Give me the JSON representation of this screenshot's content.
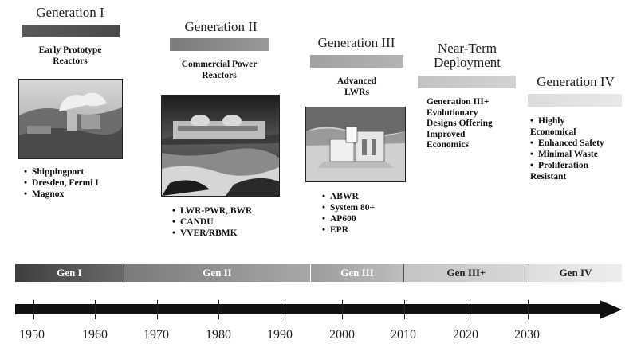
{
  "generations": [
    {
      "title": "Generation I",
      "subtitle_lines": [
        "Early Prototype",
        "Reactors"
      ],
      "items": [
        "Shippingport",
        "Dresden, Fermi I",
        "Magnox"
      ],
      "bar_from": "#5a5a5a",
      "bar_to": "#4a4a4a"
    },
    {
      "title": "Generation II",
      "subtitle_lines": [
        "Commercial Power",
        "Reactors"
      ],
      "items": [
        "LWR-PWR, BWR",
        "CANDU",
        "VVER/RBMK"
      ],
      "bar_from": "#7a7a7a",
      "bar_to": "#9a9a9a"
    },
    {
      "title": "Generation III",
      "subtitle_lines": [
        "Advanced",
        "LWRs"
      ],
      "items": [
        "ABWR",
        "System 80+",
        "AP600",
        "EPR"
      ],
      "bar_from": "#a0a0a0",
      "bar_to": "#b4b4b4"
    },
    {
      "title_lines": [
        "Near-Term",
        "Deployment"
      ],
      "description_lines": [
        "Generation III+",
        "Evolutionary",
        "Designs Offering",
        "Improved",
        "Economics"
      ],
      "bar_from": "#c2c2c2",
      "bar_to": "#d2d2d2"
    },
    {
      "title": "Generation IV",
      "items": [
        "Highly Economical",
        "Enhanced Safety",
        "Minimal Waste",
        "Proliferation Resistant"
      ],
      "bar_from": "#dcdcdc",
      "bar_to": "#e8e8e8"
    }
  ],
  "timeline_band": [
    {
      "label": "Gen I",
      "from": "#3e3e3e",
      "to": "#6a6a6a",
      "text_color": "#ffffff"
    },
    {
      "label": "Gen II",
      "from": "#7a7a7a",
      "to": "#a8a8a8",
      "text_color": "#ffffff"
    },
    {
      "label": "Gen III",
      "from": "#9c9c9c",
      "to": "#bdbdbd",
      "text_color": "#ffffff"
    },
    {
      "label": "Gen III+",
      "from": "#c4c4c4",
      "to": "#d8d8d8",
      "text_color": "#222222"
    },
    {
      "label": "Gen IV",
      "from": "#dedede",
      "to": "#eeeeee",
      "text_color": "#222222"
    }
  ],
  "years": [
    "1950",
    "1960",
    "1970",
    "1980",
    "1990",
    "2000",
    "2010",
    "2020",
    "2030"
  ]
}
